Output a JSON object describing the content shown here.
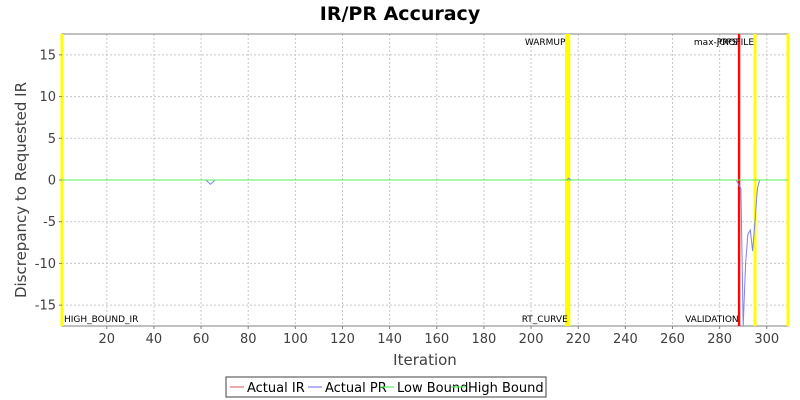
{
  "chart_data": {
    "type": "line",
    "title": "IR/PR Accuracy",
    "xlabel": "Iteration",
    "ylabel": "Discrepancy to Requested IR",
    "xlim": [
      1,
      309
    ],
    "ylim": [
      -17.5,
      17.5
    ],
    "x_ticks": [
      20,
      40,
      60,
      80,
      100,
      120,
      140,
      160,
      180,
      200,
      220,
      240,
      260,
      280,
      300
    ],
    "y_ticks": [
      -15,
      -10,
      -5,
      0,
      5,
      10,
      15
    ],
    "grid": true,
    "legend_position": "bottom",
    "series": [
      {
        "name": "Actual IR",
        "color": "#e07070",
        "points": [
          [
            1,
            0
          ],
          [
            309,
            0
          ]
        ]
      },
      {
        "name": "Actual PR",
        "color": "#8080ee",
        "points": [
          [
            1,
            0
          ],
          [
            62,
            0
          ],
          [
            64,
            -0.5
          ],
          [
            66,
            0
          ],
          [
            215,
            0
          ],
          [
            216,
            0.2
          ],
          [
            217,
            0
          ],
          [
            287,
            0
          ],
          [
            289,
            -1
          ],
          [
            290,
            -17.5
          ],
          [
            291,
            -10
          ],
          [
            292,
            -6.5
          ],
          [
            293,
            -6
          ],
          [
            294,
            -8.5
          ],
          [
            295,
            -5
          ],
          [
            296,
            -1
          ],
          [
            297,
            0
          ],
          [
            309,
            0
          ]
        ]
      },
      {
        "name": "Low Bound",
        "color": "#55ee55",
        "points": [
          [
            1,
            0
          ],
          [
            309,
            0
          ]
        ]
      },
      {
        "name": "High Bound",
        "color": "#55ee55",
        "points": [
          [
            1,
            0
          ],
          [
            309,
            0
          ]
        ]
      }
    ],
    "markers": [
      {
        "x": 1,
        "label": "HIGH_BOUND_IR",
        "color": "#ffff00",
        "label_pos": "bottom"
      },
      {
        "x": 215,
        "label": "WARMUP",
        "color": "#ffff00",
        "label_pos": "top"
      },
      {
        "x": 216,
        "label": "RT_CURVE",
        "color": "#ffff00",
        "label_pos": "bottom"
      },
      {
        "x": 288,
        "label": "max-jOPS",
        "color": "#ff0000",
        "label_pos": "top"
      },
      {
        "x": 288.5,
        "label": "VALIDATION",
        "color": "#ff0000",
        "label_pos": "bottom"
      },
      {
        "x": 295,
        "label": "PROFILE",
        "color": "#ffff00",
        "label_pos": "top"
      },
      {
        "x": 309,
        "label": "",
        "color": "#ffff00",
        "label_pos": "top"
      }
    ]
  }
}
